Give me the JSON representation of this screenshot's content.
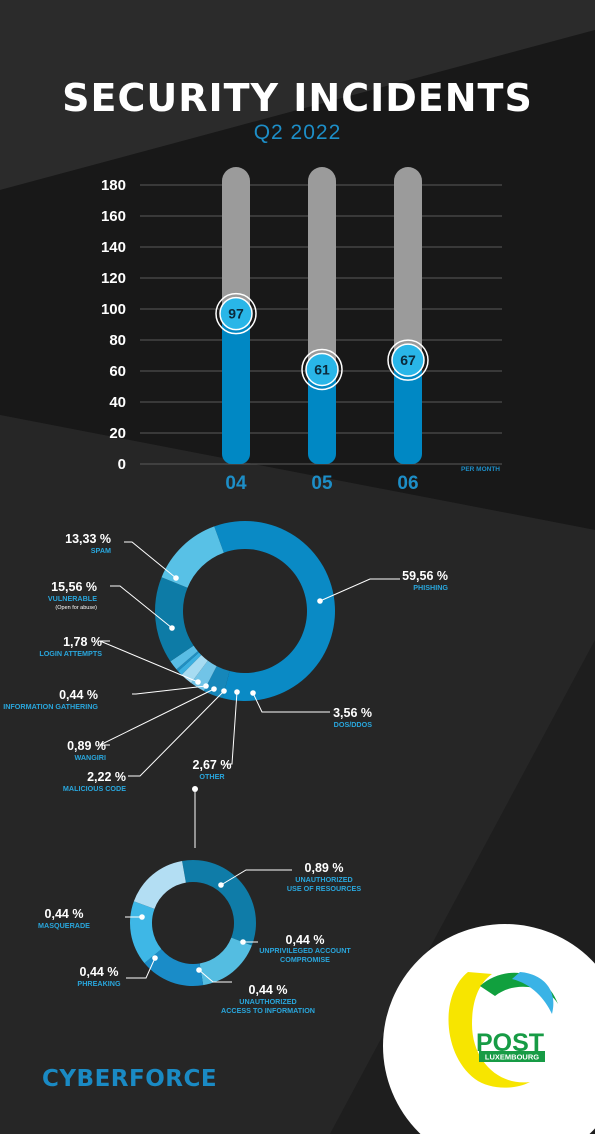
{
  "title": "SECURITY INCIDENTS",
  "subtitle": "Q2 2022",
  "colors": {
    "bg_dark": "#1b1b1b",
    "bg_mid": "#2b2b2b",
    "accent_blue": "#0088c4",
    "track_gray": "#9b9b9b",
    "bubble": "#29b6e8"
  },
  "chart_data": [
    {
      "type": "bar",
      "categories": [
        "04",
        "05",
        "06"
      ],
      "values": [
        97,
        61,
        67
      ],
      "ylim": [
        0,
        180
      ],
      "yticks": [
        0,
        20,
        40,
        60,
        80,
        100,
        120,
        140,
        160,
        180
      ],
      "grid": true,
      "xlabel": "PER MONTH",
      "ylabel": ""
    },
    {
      "type": "pie",
      "slices": [
        {
          "value": "59,56 %",
          "label": "PHISHING",
          "color": "#0a8ac5"
        },
        {
          "value": "3,56 %",
          "label": "DOS/DDOS",
          "color": "#1687ba"
        },
        {
          "value": "2,67 %",
          "label": "OTHER",
          "color": "#71c4e7"
        },
        {
          "value": "2,22 %",
          "label": "MALICIOUS CODE",
          "color": "#a7dcf2"
        },
        {
          "value": "0,89 %",
          "label": "WANGIRI",
          "color": "#3bb0e0"
        },
        {
          "value": "0,44 %",
          "label": "INFORMATION GATHERING",
          "color": "#1f8fc2"
        },
        {
          "value": "1,78 %",
          "label": "LOGIN ATTEMPTS",
          "color": "#59bde5"
        },
        {
          "value": "15,56 %",
          "label": "VULNERABLE",
          "sublabel": "(Open for abuse)",
          "color": "#0d7ba6"
        },
        {
          "value": "13,33 %",
          "label": "SPAM",
          "color": "#58c1e6"
        }
      ]
    },
    {
      "type": "pie",
      "slices": [
        {
          "value": "0,89 %",
          "label": "UNAUTHORIZED",
          "label2": "USE OF RESOURCES",
          "color": "#0f7ca8"
        },
        {
          "value": "0,44 %",
          "label": "UNPRIVILEGED ACCOUNT",
          "label2": "COMPROMISE",
          "color": "#54bde1"
        },
        {
          "value": "0,44 %",
          "label": "UNAUTHORIZED",
          "label2": "ACCESS TO INFORMATION",
          "color": "#1a8cc8"
        },
        {
          "value": "0,44 %",
          "label": "PHREAKING",
          "color": "#3eb7e6"
        },
        {
          "value": "0,44 %",
          "label": "MASQUERADE",
          "color": "#b3def3"
        }
      ]
    }
  ],
  "footer": {
    "brand": "CYBERFORCE"
  },
  "logo": {
    "line1": "POST",
    "line2": "LUXEMBOURG"
  }
}
